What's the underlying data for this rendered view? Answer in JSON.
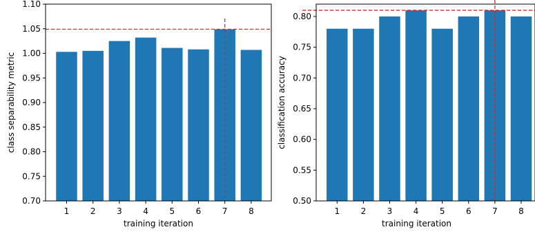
{
  "chart_data": [
    {
      "type": "bar",
      "xlabel": "training iteration",
      "ylabel": "class separability metric",
      "categories": [
        "1",
        "2",
        "3",
        "4",
        "5",
        "6",
        "7",
        "8"
      ],
      "values": [
        1.003,
        1.005,
        1.025,
        1.032,
        1.011,
        1.008,
        1.049,
        1.007
      ],
      "ylim": [
        0.7,
        1.1
      ],
      "yticks": [
        "0.70",
        "0.75",
        "0.80",
        "0.85",
        "0.90",
        "0.95",
        "1.00",
        "1.05",
        "1.10"
      ],
      "bar_color": "#1f77b4",
      "reference_line_color": "#d62728",
      "reference": {
        "x": "7",
        "y": 1.049
      },
      "grid": false
    },
    {
      "type": "bar",
      "xlabel": "training iteration",
      "ylabel": "classification accuracy",
      "categories": [
        "1",
        "2",
        "3",
        "4",
        "5",
        "6",
        "7",
        "8"
      ],
      "values": [
        0.78,
        0.78,
        0.8,
        0.81,
        0.78,
        0.8,
        0.81,
        0.8
      ],
      "ylim": [
        0.5,
        0.82
      ],
      "yticks": [
        "0.50",
        "0.55",
        "0.60",
        "0.65",
        "0.70",
        "0.75",
        "0.80"
      ],
      "bar_color": "#1f77b4",
      "reference_line_color": "#d62728",
      "reference": {
        "x": "7",
        "y": 0.81
      },
      "grid": false
    }
  ]
}
